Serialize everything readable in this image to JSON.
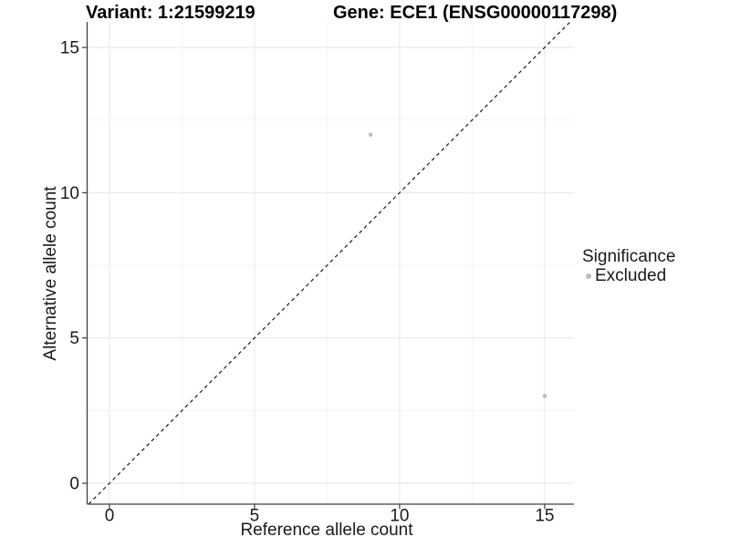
{
  "title_left": "Variant: 1:21599219",
  "title_right": "Gene: ECE1 (ENSG00000117298)",
  "chart_data": {
    "type": "scatter",
    "title": "Variant: 1:21599219 / Gene: ECE1 (ENSG00000117298)",
    "xlabel": "Reference allele count",
    "ylabel": "Alternative allele count",
    "xlim": [
      -0.77,
      16.01
    ],
    "ylim": [
      -0.72,
      15.88
    ],
    "x_ticks": [
      0,
      5,
      10,
      15
    ],
    "y_ticks": [
      0,
      5,
      10,
      15
    ],
    "x_minor_ticks": [
      2.5,
      7.5,
      12.5
    ],
    "y_minor_ticks": [
      2.5,
      7.5,
      12.5
    ],
    "grid": "major-and-minor",
    "series": [
      {
        "name": "Excluded",
        "points": [
          {
            "x": 9,
            "y": 12
          },
          {
            "x": 15,
            "y": 3
          }
        ],
        "color": "#bdbdbd"
      }
    ],
    "reference_line": {
      "type": "identity",
      "equation": "y = x",
      "style": "dashed",
      "color": "#1a1a1a"
    },
    "legend": {
      "title": "Significance",
      "position": "right",
      "items": [
        {
          "label": "Excluded",
          "color": "#bdbdbd"
        }
      ]
    },
    "colors": {
      "background": "#ffffff",
      "grid_major": "#e8e8e8",
      "grid_minor": "#f2f2f2",
      "axis_line": "#404040",
      "tick_label": "#1a1a1a"
    }
  }
}
